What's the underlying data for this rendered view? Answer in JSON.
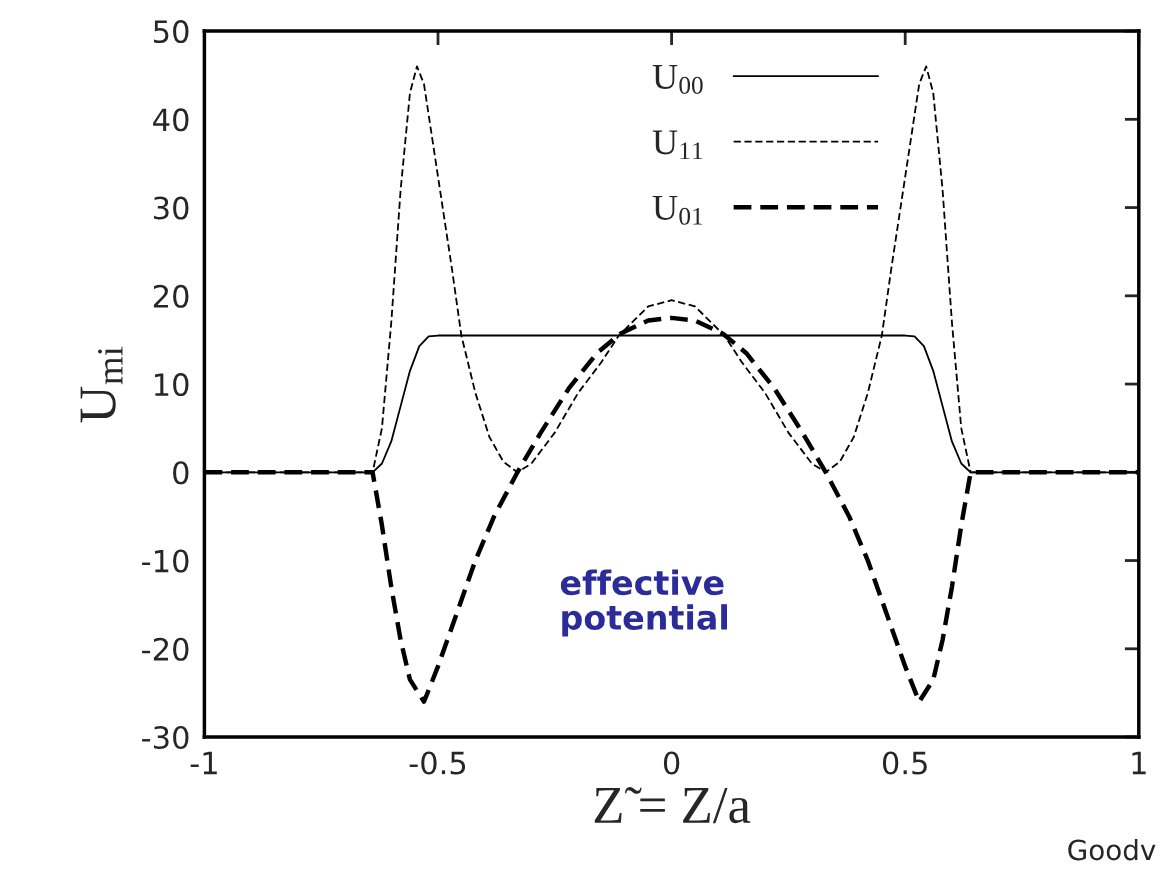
{
  "chart_data": {
    "type": "line",
    "xlabel": "Z̃ = Z/a",
    "ylabel": "U$_{mi}$",
    "xlim": [
      -1,
      1
    ],
    "ylim": [
      -30,
      50
    ],
    "xticks": [
      -1,
      -0.5,
      0,
      0.5,
      1
    ],
    "yticks": [
      -30,
      -20,
      -10,
      0,
      10,
      20,
      30,
      40,
      50
    ],
    "grid": false,
    "legend": "top",
    "marker": "none",
    "series": [
      {
        "name": "U$_{00}$",
        "color": "#000000",
        "line_style": "solid",
        "x": [
          -1,
          -0.64,
          -0.62,
          -0.6,
          -0.58,
          -0.56,
          -0.54,
          -0.52,
          -0.5,
          0.5,
          0.52,
          0.54,
          0.56,
          0.58,
          0.6,
          0.62,
          0.64,
          1
        ],
        "values": [
          0,
          0,
          1,
          3.5,
          7.5,
          11.5,
          14.3,
          15.4,
          15.5,
          15.5,
          15.4,
          14.3,
          11.5,
          7.5,
          3.5,
          1,
          0,
          0
        ]
      },
      {
        "name": "U$_{11}$",
        "color": "#000000",
        "line_style": "dashed",
        "x": [
          -1,
          -0.64,
          -0.62,
          -0.6,
          -0.58,
          -0.56,
          -0.545,
          -0.53,
          -0.51,
          -0.49,
          -0.47,
          -0.45,
          -0.42,
          -0.39,
          -0.36,
          -0.33,
          -0.3,
          -0.25,
          -0.2,
          -0.15,
          -0.113,
          -0.05,
          0,
          0.05,
          0.113,
          0.15,
          0.2,
          0.25,
          0.3,
          0.33,
          0.36,
          0.39,
          0.42,
          0.45,
          0.47,
          0.49,
          0.51,
          0.53,
          0.545,
          0.56,
          0.58,
          0.6,
          0.62,
          0.64,
          1
        ],
        "values": [
          0,
          0,
          5,
          17,
          32,
          43,
          46,
          44,
          37,
          30,
          23,
          15.5,
          9,
          4,
          1.2,
          0,
          1,
          4.5,
          9,
          12.5,
          15.5,
          18.8,
          19.5,
          18.8,
          15.5,
          12.5,
          9,
          4.5,
          1,
          0,
          1.2,
          4,
          9,
          15.5,
          23,
          30,
          37,
          44,
          46,
          43,
          32,
          17,
          5,
          0,
          0
        ]
      },
      {
        "name": "U$_{01}$",
        "color": "#000000",
        "line_style": "dashed",
        "x": [
          -1,
          -0.64,
          -0.62,
          -0.6,
          -0.58,
          -0.56,
          -0.53,
          -0.5,
          -0.46,
          -0.42,
          -0.38,
          -0.33,
          -0.28,
          -0.22,
          -0.16,
          -0.11,
          -0.05,
          0,
          0.05,
          0.11,
          0.16,
          0.22,
          0.28,
          0.33,
          0.38,
          0.42,
          0.46,
          0.5,
          0.53,
          0.56,
          0.58,
          0.6,
          0.62,
          0.64,
          1
        ],
        "values": [
          0,
          0,
          -6,
          -13,
          -19,
          -23.5,
          -26,
          -22,
          -16,
          -10,
          -5,
          0,
          4.5,
          9.5,
          13.5,
          15.7,
          17.2,
          17.5,
          17.2,
          15.7,
          13.5,
          9.5,
          4.5,
          0,
          -5,
          -10,
          -16,
          -22,
          -26,
          -23.5,
          -19,
          -13,
          -6,
          0,
          0
        ]
      }
    ],
    "annotations": [
      "effective\npotential",
      "Goodv"
    ]
  }
}
